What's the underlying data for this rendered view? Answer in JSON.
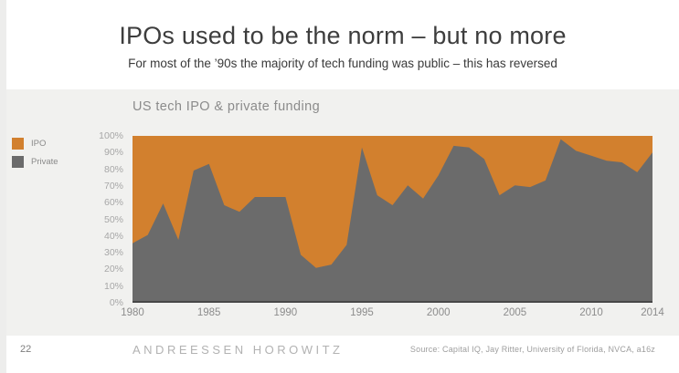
{
  "slide": {
    "title": "IPOs used to be the norm – but no more",
    "subtitle": "For most of the ’90s the majority of tech funding was public – this has reversed",
    "page_number": "22",
    "footer": {
      "logo": "ANDREESSEN HOROWITZ",
      "source": "Source: Capital IQ, Jay Ritter, University of Florida, NVCA, a16z"
    }
  },
  "chart": {
    "title": "US tech IPO & private funding"
  },
  "chart_data": {
    "type": "area",
    "stacked": true,
    "title": "US tech IPO & private funding",
    "xlabel": "",
    "ylabel": "",
    "ylim": [
      0,
      100
    ],
    "grid": false,
    "legend_position": "left",
    "x": [
      1980,
      1981,
      1982,
      1983,
      1984,
      1985,
      1986,
      1987,
      1988,
      1989,
      1990,
      1991,
      1992,
      1993,
      1994,
      1995,
      1996,
      1997,
      1998,
      1999,
      2000,
      2001,
      2002,
      2003,
      2004,
      2005,
      2006,
      2007,
      2008,
      2009,
      2010,
      2011,
      2012,
      2013,
      2014
    ],
    "x_ticks": [
      1980,
      1985,
      1990,
      1995,
      2000,
      2005,
      2010,
      2014
    ],
    "y_ticks": [
      "0%",
      "10%",
      "20%",
      "30%",
      "40%",
      "50%",
      "60%",
      "70%",
      "80%",
      "90%",
      "100%"
    ],
    "series": [
      {
        "name": "Private",
        "color": "#6b6b6b",
        "values": [
          35,
          40,
          59,
          37,
          79,
          83,
          58,
          54,
          63,
          63,
          63,
          28,
          20,
          22,
          34,
          93,
          64,
          58,
          70,
          62,
          76,
          94,
          93,
          86,
          64,
          70,
          69,
          73,
          98,
          91,
          88,
          85,
          84,
          78,
          90
        ]
      },
      {
        "name": "IPO",
        "color": "#d2802e",
        "values": [
          65,
          60,
          41,
          63,
          21,
          17,
          42,
          46,
          37,
          37,
          37,
          72,
          80,
          78,
          66,
          7,
          36,
          42,
          30,
          38,
          24,
          6,
          7,
          14,
          36,
          30,
          31,
          27,
          2,
          9,
          12,
          15,
          16,
          22,
          10
        ]
      }
    ],
    "legend": [
      {
        "label": "IPO",
        "color": "#d2802e"
      },
      {
        "label": "Private",
        "color": "#6b6b6b"
      }
    ],
    "axis_line_color": "#474747"
  }
}
